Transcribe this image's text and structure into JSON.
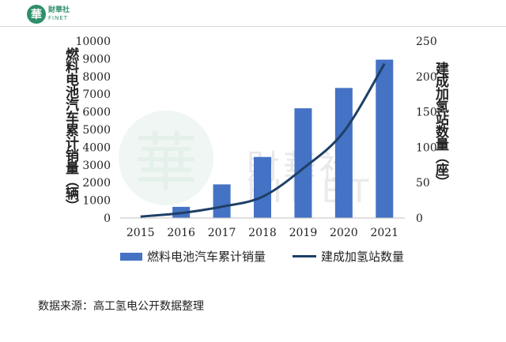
{
  "logo": {
    "mark": "華",
    "cn": "財華社",
    "en": "FINET"
  },
  "watermark": {
    "mark": "華",
    "cn": "財華社",
    "en": "FINET"
  },
  "source": "数据来源：高工氢电公开数据整理",
  "colors": {
    "bar": "#4472c4",
    "line": "#1f3f66",
    "brand": "#2f8f6a"
  },
  "chart_data": {
    "type": "bar",
    "categories": [
      "2015",
      "2016",
      "2017",
      "2018",
      "2019",
      "2020",
      "2021"
    ],
    "series": [
      {
        "name": "燃料电池汽车累计销量",
        "type": "bar",
        "axis": "left",
        "values": [
          0,
          630,
          1900,
          3450,
          6200,
          7350,
          8950
        ]
      },
      {
        "name": "建成加氢站数量",
        "type": "line",
        "axis": "right",
        "values": [
          2,
          7,
          16,
          30,
          70,
          122,
          218
        ]
      }
    ],
    "ylabel_left": "燃料电池汽车累计销量（辆）",
    "ylabel_right": "建成加氢站数量（座）",
    "ylim_left": [
      0,
      10000
    ],
    "ylim_right": [
      0,
      250
    ],
    "yticks_left": [
      "0",
      "1000",
      "2000",
      "3000",
      "4000",
      "5000",
      "6000",
      "7000",
      "8000",
      "9000",
      "10000"
    ],
    "yticks_right": [
      "0",
      "50",
      "100",
      "150",
      "200",
      "250"
    ],
    "grid": false,
    "legend_position": "bottom"
  }
}
